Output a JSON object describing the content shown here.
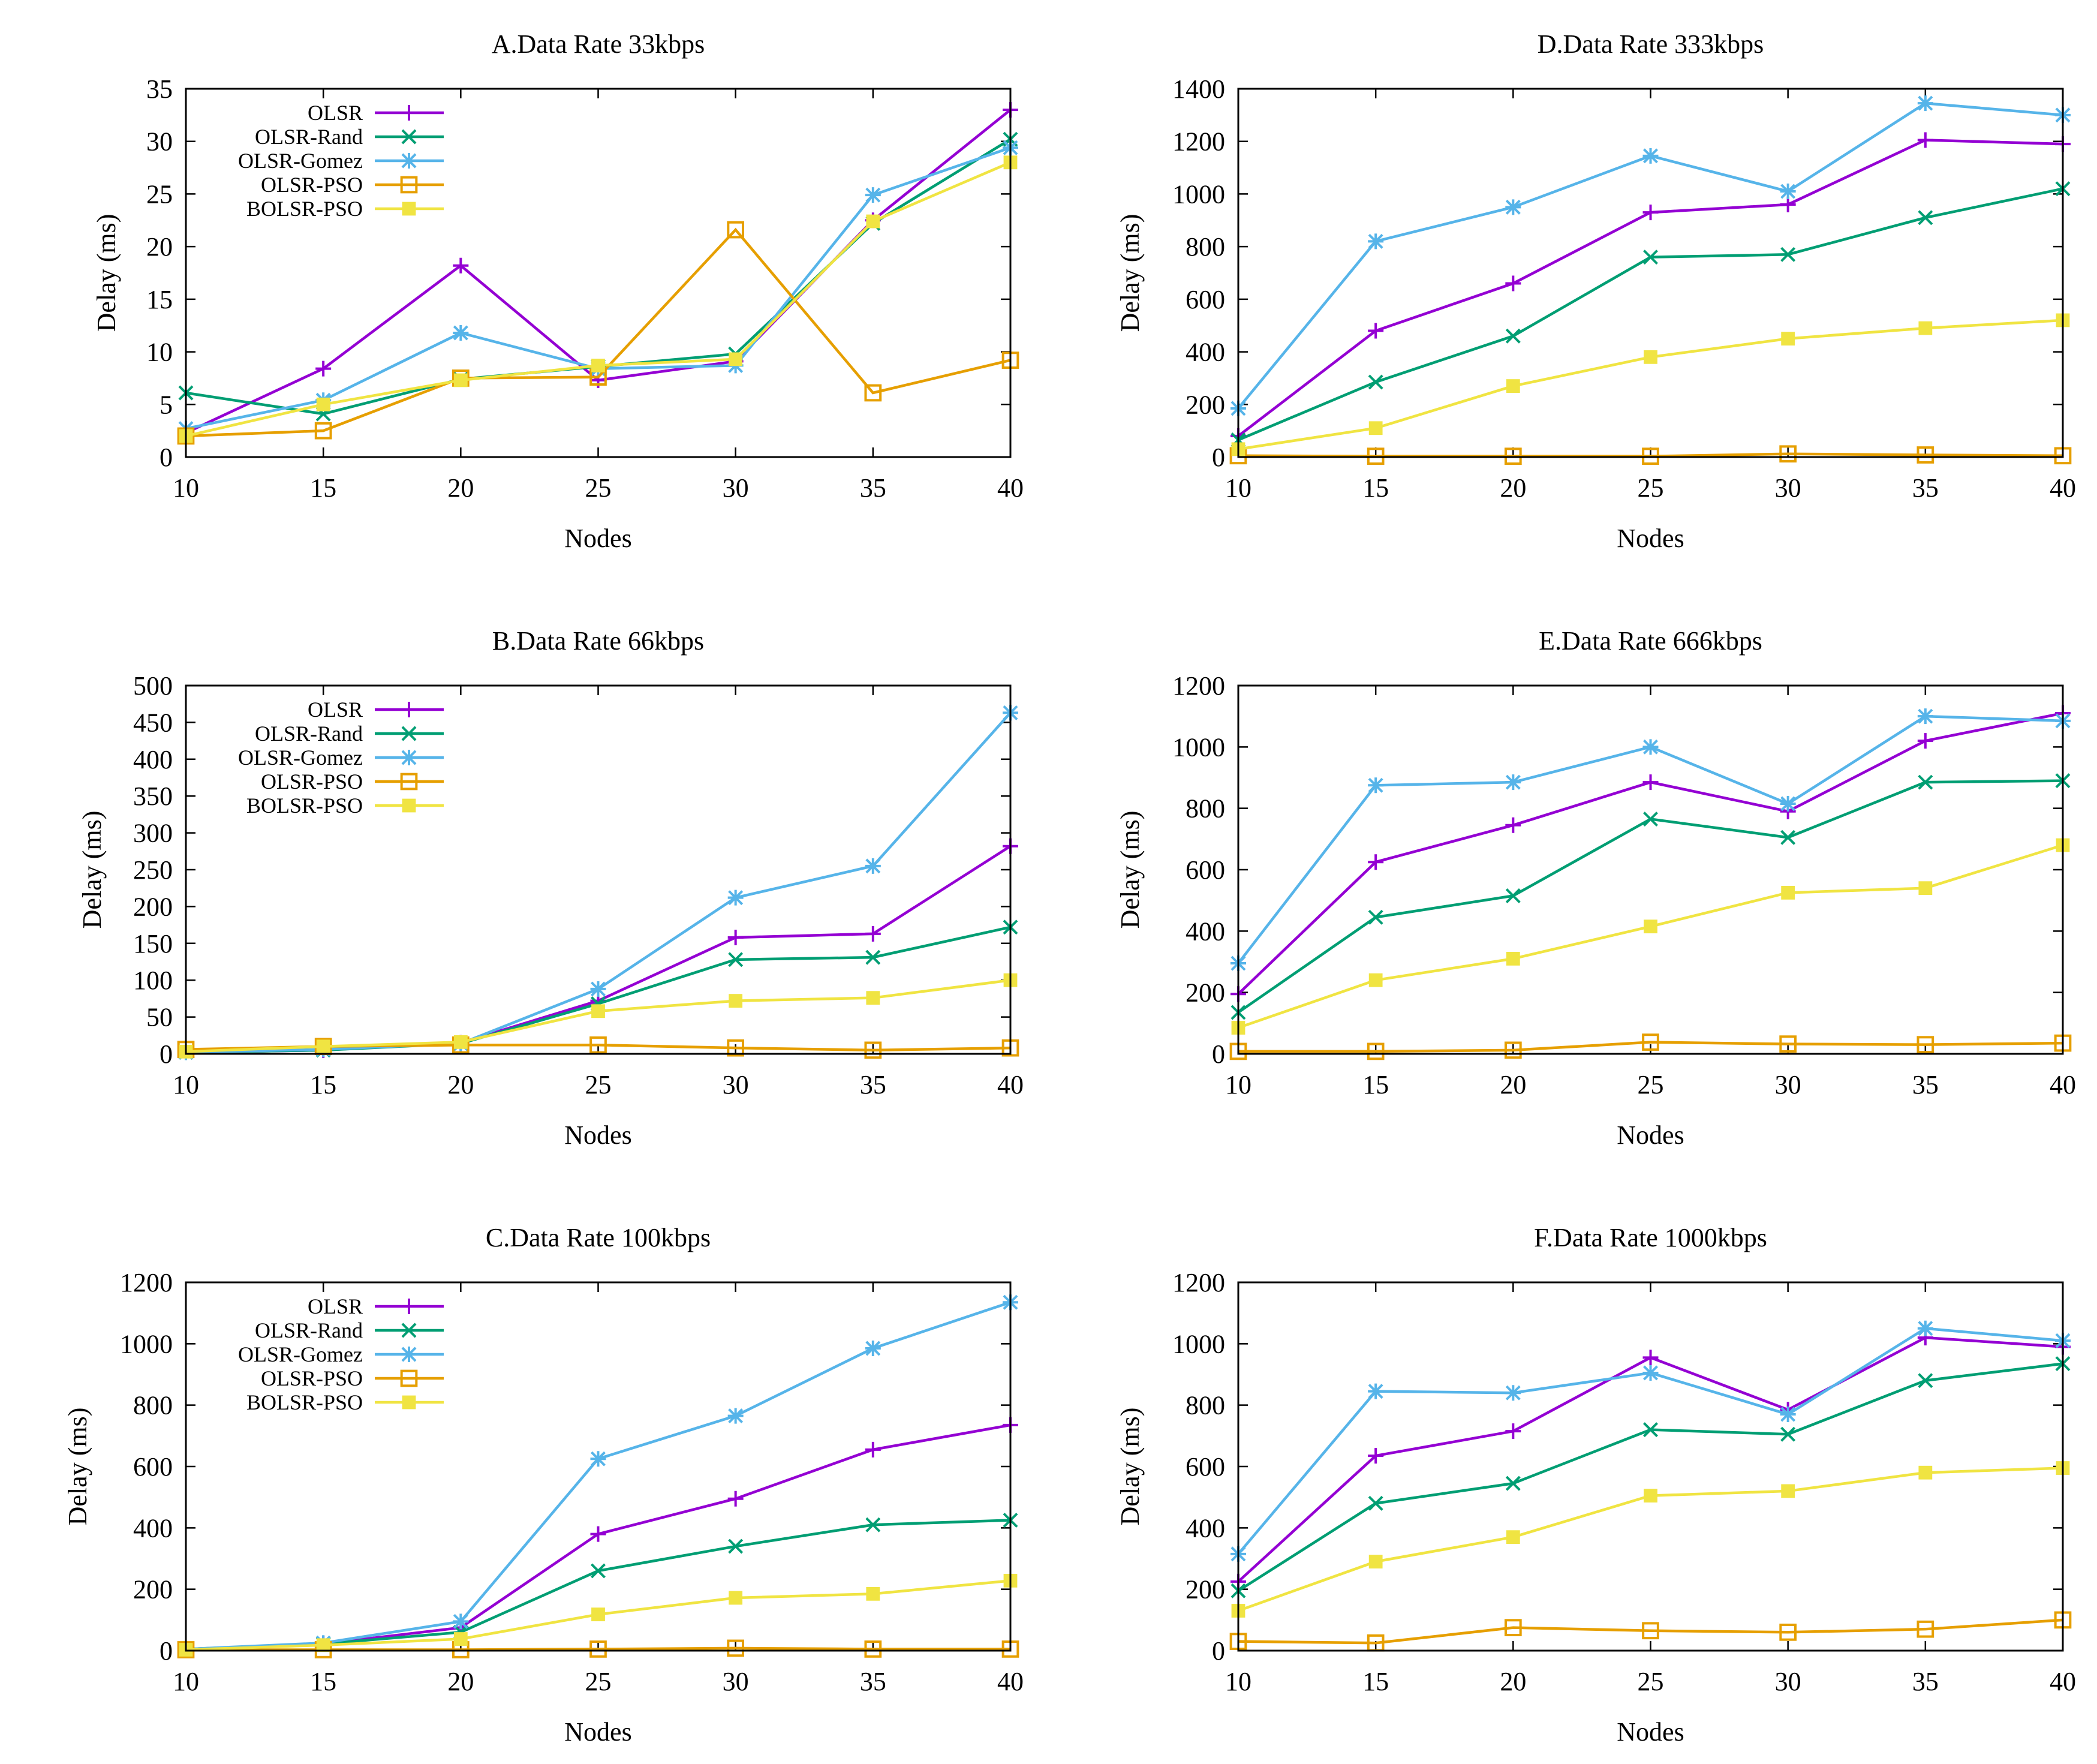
{
  "colors": {
    "OLSR": "#9400d3",
    "OLSR-Rand": "#009e73",
    "OLSR-Gomez": "#56b4e9",
    "OLSR-PSO": "#e69f00",
    "BOLSR-PSO": "#f0e442"
  },
  "chart_data": [
    {
      "type": "line",
      "title": "A.Data Rate 33kbps",
      "xlabel": "Nodes",
      "ylabel": "Delay (ms)",
      "x": [
        10,
        15,
        20,
        25,
        30,
        35,
        40
      ],
      "xticks": [
        "10",
        "15",
        "20",
        "25",
        "30",
        "35",
        "40"
      ],
      "ylim": [
        0,
        35
      ],
      "yticks": [
        0,
        5,
        10,
        15,
        20,
        25,
        30,
        35
      ],
      "legend": "top-left",
      "series": [
        {
          "name": "OLSR",
          "marker": "plus",
          "values": [
            2.3,
            8.4,
            18.2,
            7.3,
            9.1,
            22.5,
            33.0
          ]
        },
        {
          "name": "OLSR-Rand",
          "marker": "cross",
          "values": [
            6.1,
            4.1,
            7.4,
            8.6,
            9.8,
            22.2,
            30.2
          ]
        },
        {
          "name": "OLSR-Gomez",
          "marker": "star",
          "values": [
            2.7,
            5.4,
            11.8,
            8.4,
            8.7,
            24.9,
            29.4
          ]
        },
        {
          "name": "OLSR-PSO",
          "marker": "open-square",
          "values": [
            2.0,
            2.5,
            7.5,
            7.6,
            21.6,
            6.1,
            9.2
          ]
        },
        {
          "name": "BOLSR-PSO",
          "marker": "filled-square",
          "values": [
            2.0,
            5.0,
            7.3,
            8.7,
            9.3,
            22.4,
            28.0
          ]
        }
      ]
    },
    {
      "type": "line",
      "title": "D.Data Rate 333kbps",
      "xlabel": "Nodes",
      "ylabel": "Delay (ms)",
      "x": [
        10,
        15,
        20,
        25,
        30,
        35,
        40
      ],
      "xticks": [
        "10",
        "15",
        "20",
        "25",
        "30",
        "35",
        "40"
      ],
      "ylim": [
        0,
        1400
      ],
      "yticks": [
        0,
        200,
        400,
        600,
        800,
        1000,
        1200,
        1400
      ],
      "legend": "none",
      "series": [
        {
          "name": "OLSR",
          "marker": "plus",
          "values": [
            80,
            480,
            660,
            930,
            960,
            1205,
            1190
          ]
        },
        {
          "name": "OLSR-Rand",
          "marker": "cross",
          "values": [
            65,
            285,
            460,
            760,
            770,
            910,
            1020
          ]
        },
        {
          "name": "OLSR-Gomez",
          "marker": "star",
          "values": [
            185,
            820,
            950,
            1145,
            1010,
            1345,
            1300
          ]
        },
        {
          "name": "OLSR-PSO",
          "marker": "open-square",
          "values": [
            5,
            3,
            3,
            3,
            12,
            8,
            5
          ]
        },
        {
          "name": "BOLSR-PSO",
          "marker": "filled-square",
          "values": [
            30,
            110,
            270,
            380,
            450,
            490,
            520
          ]
        }
      ]
    },
    {
      "type": "line",
      "title": "B.Data Rate 66kbps",
      "xlabel": "Nodes",
      "ylabel": "Delay (ms)",
      "x": [
        10,
        15,
        20,
        25,
        30,
        35,
        40
      ],
      "xticks": [
        "10",
        "15",
        "20",
        "25",
        "30",
        "35",
        "40"
      ],
      "ylim": [
        0,
        500
      ],
      "yticks": [
        0,
        50,
        100,
        150,
        200,
        250,
        300,
        350,
        400,
        450,
        500
      ],
      "legend": "top-left",
      "series": [
        {
          "name": "OLSR",
          "marker": "plus",
          "values": [
            2,
            5,
            15,
            72,
            158,
            163,
            282
          ]
        },
        {
          "name": "OLSR-Rand",
          "marker": "cross",
          "values": [
            2,
            5,
            14,
            68,
            128,
            131,
            172
          ]
        },
        {
          "name": "OLSR-Gomez",
          "marker": "star",
          "values": [
            2,
            6,
            14,
            88,
            212,
            255,
            463
          ]
        },
        {
          "name": "OLSR-PSO",
          "marker": "open-square",
          "values": [
            6,
            10,
            12,
            12,
            8,
            5,
            8
          ]
        },
        {
          "name": "BOLSR-PSO",
          "marker": "filled-square",
          "values": [
            3,
            10,
            16,
            58,
            72,
            76,
            100
          ]
        }
      ]
    },
    {
      "type": "line",
      "title": "E.Data Rate 666kbps",
      "xlabel": "Nodes",
      "ylabel": "Delay (ms)",
      "x": [
        10,
        15,
        20,
        25,
        30,
        35,
        40
      ],
      "xticks": [
        "10",
        "15",
        "20",
        "25",
        "30",
        "35",
        "40"
      ],
      "ylim": [
        0,
        1200
      ],
      "yticks": [
        0,
        200,
        400,
        600,
        800,
        1000,
        1200
      ],
      "legend": "none",
      "series": [
        {
          "name": "OLSR",
          "marker": "plus",
          "values": [
            195,
            625,
            745,
            885,
            790,
            1020,
            1110
          ]
        },
        {
          "name": "OLSR-Rand",
          "marker": "cross",
          "values": [
            135,
            445,
            515,
            765,
            705,
            885,
            890
          ]
        },
        {
          "name": "OLSR-Gomez",
          "marker": "star",
          "values": [
            295,
            875,
            885,
            1000,
            815,
            1100,
            1085
          ]
        },
        {
          "name": "OLSR-PSO",
          "marker": "open-square",
          "values": [
            8,
            8,
            12,
            38,
            32,
            30,
            35
          ]
        },
        {
          "name": "BOLSR-PSO",
          "marker": "filled-square",
          "values": [
            85,
            240,
            310,
            415,
            525,
            540,
            680
          ]
        }
      ]
    },
    {
      "type": "line",
      "title": "C.Data Rate 100kbps",
      "xlabel": "Nodes",
      "ylabel": "Delay (ms)",
      "x": [
        10,
        15,
        20,
        25,
        30,
        35,
        40
      ],
      "xticks": [
        "10",
        "15",
        "20",
        "25",
        "30",
        "35",
        "40"
      ],
      "ylim": [
        0,
        1200
      ],
      "yticks": [
        0,
        200,
        400,
        600,
        800,
        1000,
        1200
      ],
      "legend": "top-left",
      "series": [
        {
          "name": "OLSR",
          "marker": "plus",
          "values": [
            5,
            22,
            75,
            380,
            495,
            655,
            735
          ]
        },
        {
          "name": "OLSR-Rand",
          "marker": "cross",
          "values": [
            5,
            22,
            60,
            260,
            340,
            410,
            425
          ]
        },
        {
          "name": "OLSR-Gomez",
          "marker": "star",
          "values": [
            5,
            25,
            95,
            625,
            765,
            985,
            1135
          ]
        },
        {
          "name": "OLSR-PSO",
          "marker": "open-square",
          "values": [
            3,
            3,
            3,
            5,
            8,
            5,
            5
          ]
        },
        {
          "name": "BOLSR-PSO",
          "marker": "filled-square",
          "values": [
            3,
            18,
            38,
            118,
            172,
            185,
            228
          ]
        }
      ]
    },
    {
      "type": "line",
      "title": "F.Data Rate 1000kbps",
      "xlabel": "Nodes",
      "ylabel": "Delay (ms)",
      "x": [
        10,
        15,
        20,
        25,
        30,
        35,
        40
      ],
      "xticks": [
        "10",
        "15",
        "20",
        "25",
        "30",
        "35",
        "40"
      ],
      "ylim": [
        0,
        1200
      ],
      "yticks": [
        0,
        200,
        400,
        600,
        800,
        1000,
        1200
      ],
      "legend": "none",
      "series": [
        {
          "name": "OLSR",
          "marker": "plus",
          "values": [
            225,
            635,
            715,
            955,
            785,
            1020,
            990
          ]
        },
        {
          "name": "OLSR-Rand",
          "marker": "cross",
          "values": [
            195,
            480,
            545,
            720,
            705,
            880,
            935
          ]
        },
        {
          "name": "OLSR-Gomez",
          "marker": "star",
          "values": [
            315,
            845,
            840,
            905,
            770,
            1050,
            1010
          ]
        },
        {
          "name": "OLSR-PSO",
          "marker": "open-square",
          "values": [
            30,
            25,
            75,
            65,
            60,
            70,
            100
          ]
        },
        {
          "name": "BOLSR-PSO",
          "marker": "filled-square",
          "values": [
            130,
            290,
            370,
            505,
            520,
            580,
            595
          ]
        }
      ]
    }
  ]
}
